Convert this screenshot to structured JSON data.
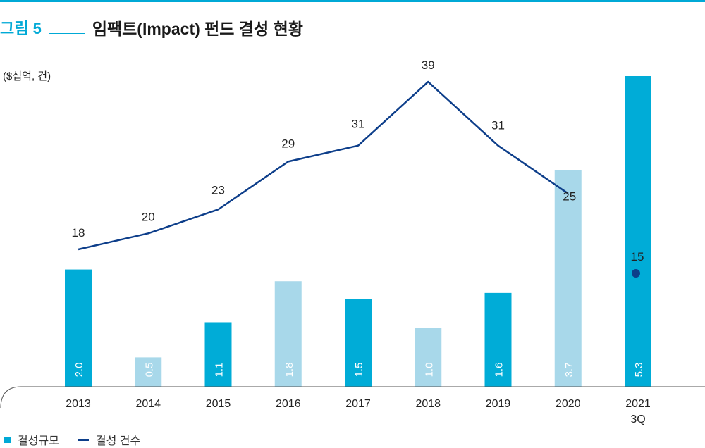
{
  "figure": {
    "label": "그림 5",
    "title": "임팩트(Impact) 펀드 결성 현황",
    "unit": "($십억, 건)"
  },
  "legend": {
    "bar": "결성규모",
    "line": "결성 건수"
  },
  "colors": {
    "accent": "#00a9d6",
    "bar_dark": "#00acd7",
    "bar_light": "#a8d8ea",
    "line": "#0d3e8a"
  },
  "chart_data": {
    "type": "bar",
    "categories": [
      "2013",
      "2014",
      "2015",
      "2016",
      "2017",
      "2018",
      "2019",
      "2020",
      "2021\n3Q"
    ],
    "series": [
      {
        "name": "결성규모",
        "type": "bar",
        "values": [
          2.0,
          0.5,
          1.1,
          1.8,
          1.5,
          1.0,
          1.6,
          3.7,
          5.3
        ],
        "labels": [
          "2.0",
          "0.5",
          "1.1",
          "1.8",
          "1.5",
          "1.0",
          "1.6",
          "3.7",
          "5.3"
        ],
        "shade": [
          "dark",
          "light",
          "dark",
          "light",
          "dark",
          "light",
          "dark",
          "light",
          "dark"
        ]
      },
      {
        "name": "결성 건수",
        "type": "line",
        "values": [
          18,
          20,
          23,
          29,
          31,
          39,
          31,
          25,
          15
        ],
        "labels": [
          "18",
          "20",
          "23",
          "29",
          "31",
          "39",
          "31",
          "25",
          "15"
        ]
      }
    ],
    "grid": false
  }
}
